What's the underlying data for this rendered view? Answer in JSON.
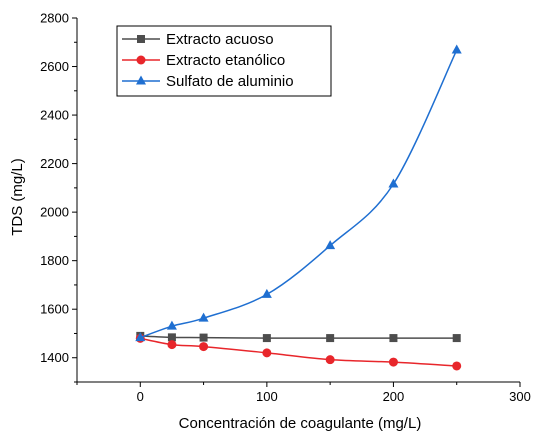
{
  "chart_data": {
    "type": "line",
    "title": "",
    "xlabel": "Concentración de coagulante (mg/L)",
    "ylabel": "TDS (mg/L)",
    "xlim": [
      -50,
      300
    ],
    "ylim": [
      1300,
      2800
    ],
    "xticks": [
      0,
      100,
      200,
      300
    ],
    "yticks": [
      1400,
      1600,
      1800,
      2000,
      2200,
      2400,
      2600,
      2800
    ],
    "x": [
      0,
      25,
      50,
      100,
      150,
      200,
      250
    ],
    "grid": false,
    "legend_position": "top-left",
    "series": [
      {
        "name": "Extracto acuoso",
        "color": "#4d4d4d",
        "marker": "square",
        "values": [
          1490,
          1484,
          1483,
          1481,
          1481,
          1481,
          1481
        ]
      },
      {
        "name": "Extracto etanólico",
        "color": "#e8262b",
        "marker": "circle",
        "values": [
          1480,
          1454,
          1446,
          1420,
          1392,
          1382,
          1366
        ]
      },
      {
        "name": "Sulfato de aluminio",
        "color": "#1f6fd1",
        "marker": "triangle",
        "values": [
          1483,
          1530,
          1563,
          1661,
          1862,
          2116,
          2668
        ]
      }
    ]
  }
}
